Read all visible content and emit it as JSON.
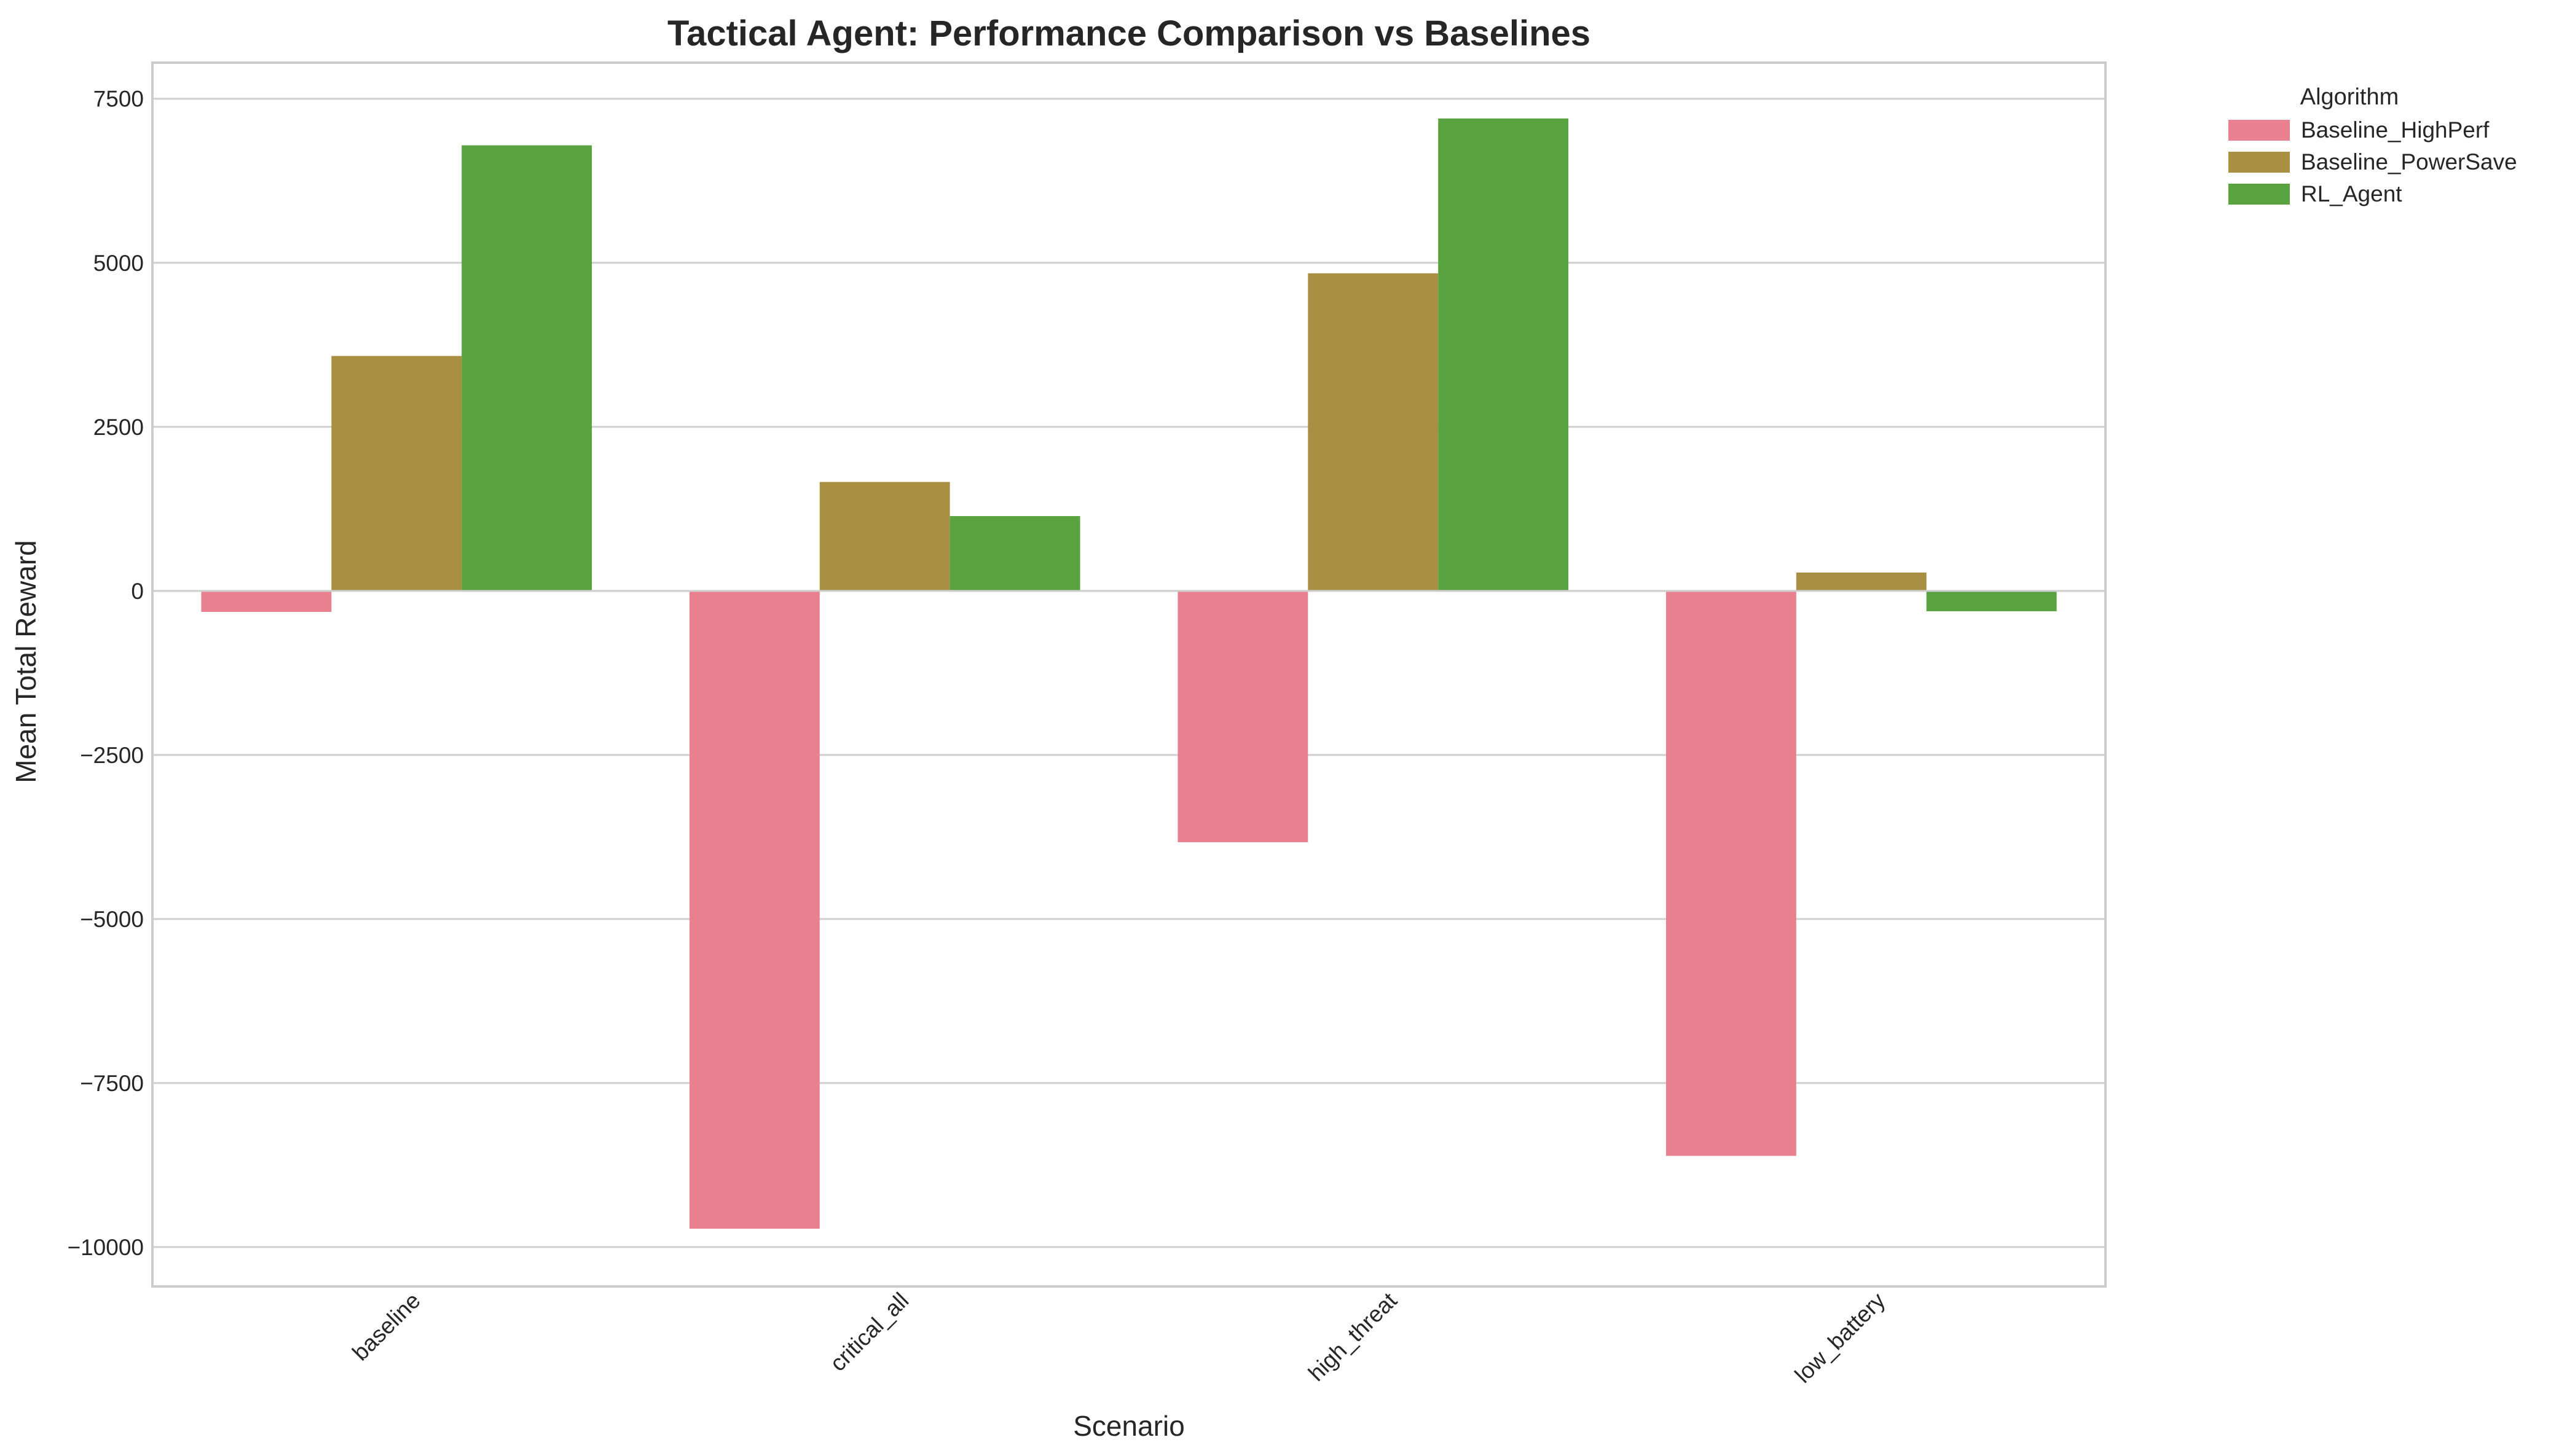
{
  "chart_data": {
    "type": "bar",
    "title": "Tactical Agent: Performance Comparison vs Baselines",
    "xlabel": "Scenario",
    "ylabel": "Mean Total Reward",
    "categories": [
      "baseline",
      "critical_all",
      "high_threat",
      "low_battery"
    ],
    "yticks": [
      -10000,
      -7500,
      -5000,
      -2500,
      0,
      2500,
      5000,
      7500
    ],
    "ylim": [
      -10600,
      8050
    ],
    "grid": true,
    "legend": {
      "title": "Algorithm",
      "placement": "outside-top-right"
    },
    "series": [
      {
        "name": "Baseline_HighPerf",
        "color": "#e8808f",
        "values": [
          -320,
          -9720,
          -3830,
          -8610
        ]
      },
      {
        "name": "Baseline_PowerSave",
        "color": "#a98f41",
        "values": [
          3580,
          1660,
          4840,
          280
        ]
      },
      {
        "name": "RL_Agent",
        "color": "#58a33f",
        "values": [
          6790,
          1140,
          7200,
          -310
        ]
      }
    ]
  }
}
